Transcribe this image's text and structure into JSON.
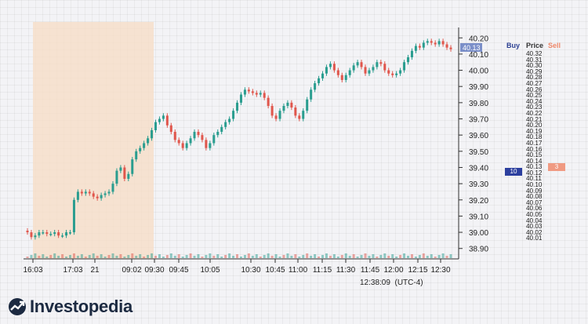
{
  "chart_data": {
    "type": "candlestick",
    "y_axis": {
      "ticks": [
        "40.20",
        "40.10",
        "40.00",
        "39.90",
        "39.80",
        "39.70",
        "39.60",
        "39.50",
        "39.40",
        "39.30",
        "39.20",
        "39.10",
        "39.00",
        "38.90"
      ],
      "range": [
        38.86,
        40.24
      ],
      "current_price": "40.13"
    },
    "x_axis": {
      "ticks": [
        "16:03",
        "17:03",
        "21",
        "09:02",
        "09:30",
        "09:45",
        "10:05",
        "10:30",
        "10:45",
        "11:00",
        "11:15",
        "11:30",
        "11:45",
        "12:00",
        "12:15",
        "12:30"
      ],
      "current_time": "12:38:09",
      "timezone": "(UTC-4)"
    },
    "extended_hours_shaded": true,
    "series_close": [
      39.0,
      38.97,
      38.98,
      39.0,
      39.0,
      38.99,
      38.99,
      39.0,
      38.98,
      38.98,
      39.0,
      39.0,
      39.2,
      39.25,
      39.24,
      39.25,
      39.24,
      39.22,
      39.21,
      39.23,
      39.24,
      39.25,
      39.3,
      39.38,
      39.4,
      39.33,
      39.36,
      39.45,
      39.5,
      39.52,
      39.55,
      39.58,
      39.63,
      39.68,
      39.7,
      39.72,
      39.66,
      39.62,
      39.57,
      39.55,
      39.52,
      39.55,
      39.58,
      39.62,
      39.6,
      39.57,
      39.52,
      39.55,
      39.6,
      39.62,
      39.65,
      39.68,
      39.7,
      39.75,
      39.8,
      39.85,
      39.88,
      39.87,
      39.86,
      39.85,
      39.86,
      39.83,
      39.78,
      39.72,
      39.7,
      39.75,
      39.78,
      39.8,
      39.77,
      39.72,
      39.7,
      39.75,
      39.82,
      39.88,
      39.92,
      39.95,
      39.98,
      40.02,
      40.04,
      40.0,
      39.97,
      39.94,
      39.97,
      40.0,
      40.03,
      40.05,
      40.02,
      39.98,
      40.0,
      40.02,
      40.05,
      40.04,
      40.0,
      39.98,
      39.97,
      39.98,
      40.0,
      40.05,
      40.08,
      40.12,
      40.15,
      40.14,
      40.17,
      40.18,
      40.17,
      40.16,
      40.18,
      40.16,
      40.14,
      40.13
    ]
  },
  "dom": {
    "headers": {
      "buy": "Buy",
      "price": "Price",
      "sell": "Sell"
    },
    "prices": [
      "40.32",
      "40.31",
      "40.30",
      "40.29",
      "40.28",
      "40.27",
      "40.26",
      "40.25",
      "40.24",
      "40.23",
      "40.22",
      "40.21",
      "40.20",
      "40.19",
      "40.18",
      "40.17",
      "40.16",
      "40.15",
      "40.14",
      "40.13",
      "40.12",
      "40.11",
      "40.10",
      "40.09",
      "40.08",
      "40.07",
      "40.06",
      "40.05",
      "40.04",
      "40.03",
      "40.02",
      "40.01"
    ],
    "buy_size": "10",
    "sell_size": "3"
  },
  "logo": {
    "text": "Investopedia"
  },
  "colors": {
    "up": "#2a9d8f",
    "down": "#e0564c",
    "shade": "#f7dcc4",
    "price_tag": "#7b8fc9"
  }
}
